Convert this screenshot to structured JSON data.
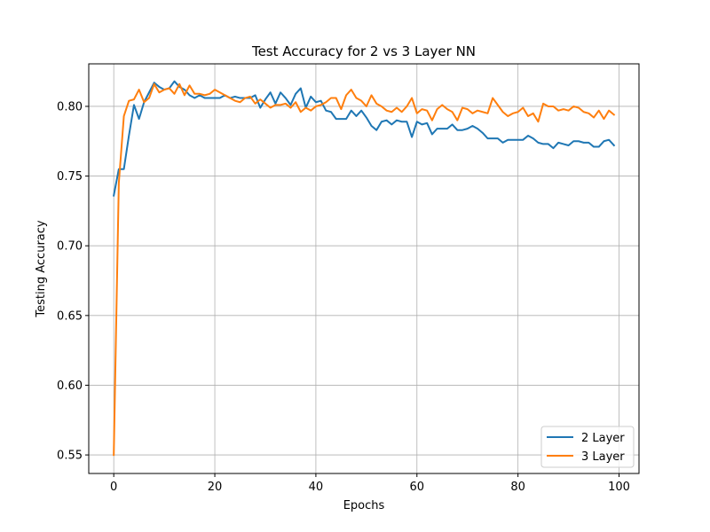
{
  "chart_data": {
    "type": "line",
    "title": "Test Accuracy for 2 vs 3 Layer NN",
    "xlabel": "Epochs",
    "ylabel": "Testing Accuracy",
    "xlim": [
      -4.95,
      103.95
    ],
    "ylim": [
      0.5367,
      0.8305
    ],
    "xticks": [
      0,
      20,
      40,
      60,
      80,
      100
    ],
    "yticks": [
      0.55,
      0.6,
      0.65,
      0.7,
      0.75,
      0.8
    ],
    "xtick_labels": [
      "0",
      "20",
      "40",
      "60",
      "80",
      "100"
    ],
    "ytick_labels": [
      "0.55",
      "0.60",
      "0.65",
      "0.70",
      "0.75",
      "0.80"
    ],
    "grid": true,
    "legend_position": "lower-right",
    "series": [
      {
        "name": "2 Layer",
        "color": "#1f77b4",
        "x": [
          0,
          1,
          2,
          3,
          4,
          5,
          6,
          7,
          8,
          9,
          10,
          11,
          12,
          13,
          14,
          15,
          16,
          17,
          18,
          19,
          20,
          21,
          22,
          23,
          24,
          25,
          26,
          27,
          28,
          29,
          30,
          31,
          32,
          33,
          34,
          35,
          36,
          37,
          38,
          39,
          40,
          41,
          42,
          43,
          44,
          45,
          46,
          47,
          48,
          49,
          50,
          51,
          52,
          53,
          54,
          55,
          56,
          57,
          58,
          59,
          60,
          61,
          62,
          63,
          64,
          65,
          66,
          67,
          68,
          69,
          70,
          71,
          72,
          73,
          74,
          75,
          76,
          77,
          78,
          79,
          80,
          81,
          82,
          83,
          84,
          85,
          86,
          87,
          88,
          89,
          90,
          91,
          92,
          93,
          94,
          95,
          96,
          97,
          98,
          99
        ],
        "values": [
          0.736,
          0.755,
          0.755,
          0.779,
          0.801,
          0.791,
          0.803,
          0.81,
          0.817,
          0.814,
          0.812,
          0.813,
          0.818,
          0.814,
          0.812,
          0.808,
          0.806,
          0.808,
          0.806,
          0.806,
          0.806,
          0.806,
          0.808,
          0.806,
          0.807,
          0.806,
          0.806,
          0.806,
          0.808,
          0.799,
          0.805,
          0.81,
          0.802,
          0.81,
          0.806,
          0.801,
          0.809,
          0.813,
          0.799,
          0.807,
          0.803,
          0.804,
          0.797,
          0.796,
          0.791,
          0.791,
          0.791,
          0.797,
          0.793,
          0.797,
          0.792,
          0.786,
          0.783,
          0.789,
          0.79,
          0.787,
          0.79,
          0.789,
          0.789,
          0.778,
          0.789,
          0.787,
          0.788,
          0.78,
          0.784,
          0.784,
          0.784,
          0.787,
          0.783,
          0.783,
          0.784,
          0.786,
          0.784,
          0.781,
          0.777,
          0.777,
          0.777,
          0.774,
          0.776,
          0.776,
          0.776,
          0.776,
          0.779,
          0.777,
          0.774,
          0.773,
          0.773,
          0.77,
          0.774,
          0.773,
          0.772,
          0.775,
          0.775,
          0.774,
          0.774,
          0.771,
          0.771,
          0.775,
          0.776,
          0.772
        ]
      },
      {
        "name": "3 Layer",
        "color": "#ff7f0e",
        "x": [
          0,
          1,
          2,
          3,
          4,
          5,
          6,
          7,
          8,
          9,
          10,
          11,
          12,
          13,
          14,
          15,
          16,
          17,
          18,
          19,
          20,
          21,
          22,
          23,
          24,
          25,
          26,
          27,
          28,
          29,
          30,
          31,
          32,
          33,
          34,
          35,
          36,
          37,
          38,
          39,
          40,
          41,
          42,
          43,
          44,
          45,
          46,
          47,
          48,
          49,
          50,
          51,
          52,
          53,
          54,
          55,
          56,
          57,
          58,
          59,
          60,
          61,
          62,
          63,
          64,
          65,
          66,
          67,
          68,
          69,
          70,
          71,
          72,
          73,
          74,
          75,
          76,
          77,
          78,
          79,
          80,
          81,
          82,
          83,
          84,
          85,
          86,
          87,
          88,
          89,
          90,
          91,
          92,
          93,
          94,
          95,
          96,
          97,
          98,
          99
        ],
        "values": [
          0.55,
          0.745,
          0.793,
          0.804,
          0.805,
          0.812,
          0.803,
          0.806,
          0.816,
          0.81,
          0.812,
          0.813,
          0.809,
          0.816,
          0.808,
          0.815,
          0.809,
          0.809,
          0.808,
          0.809,
          0.812,
          0.81,
          0.808,
          0.806,
          0.804,
          0.803,
          0.806,
          0.807,
          0.802,
          0.805,
          0.802,
          0.799,
          0.801,
          0.801,
          0.802,
          0.799,
          0.803,
          0.796,
          0.799,
          0.797,
          0.8,
          0.801,
          0.803,
          0.806,
          0.806,
          0.798,
          0.808,
          0.812,
          0.806,
          0.804,
          0.8,
          0.808,
          0.802,
          0.8,
          0.797,
          0.796,
          0.799,
          0.796,
          0.8,
          0.806,
          0.795,
          0.798,
          0.797,
          0.79,
          0.798,
          0.801,
          0.798,
          0.796,
          0.79,
          0.799,
          0.798,
          0.795,
          0.797,
          0.796,
          0.795,
          0.806,
          0.801,
          0.796,
          0.793,
          0.795,
          0.796,
          0.799,
          0.793,
          0.795,
          0.789,
          0.802,
          0.8,
          0.8,
          0.797,
          0.798,
          0.797,
          0.8,
          0.799,
          0.796,
          0.795,
          0.792,
          0.797,
          0.791,
          0.797,
          0.794
        ]
      }
    ]
  }
}
